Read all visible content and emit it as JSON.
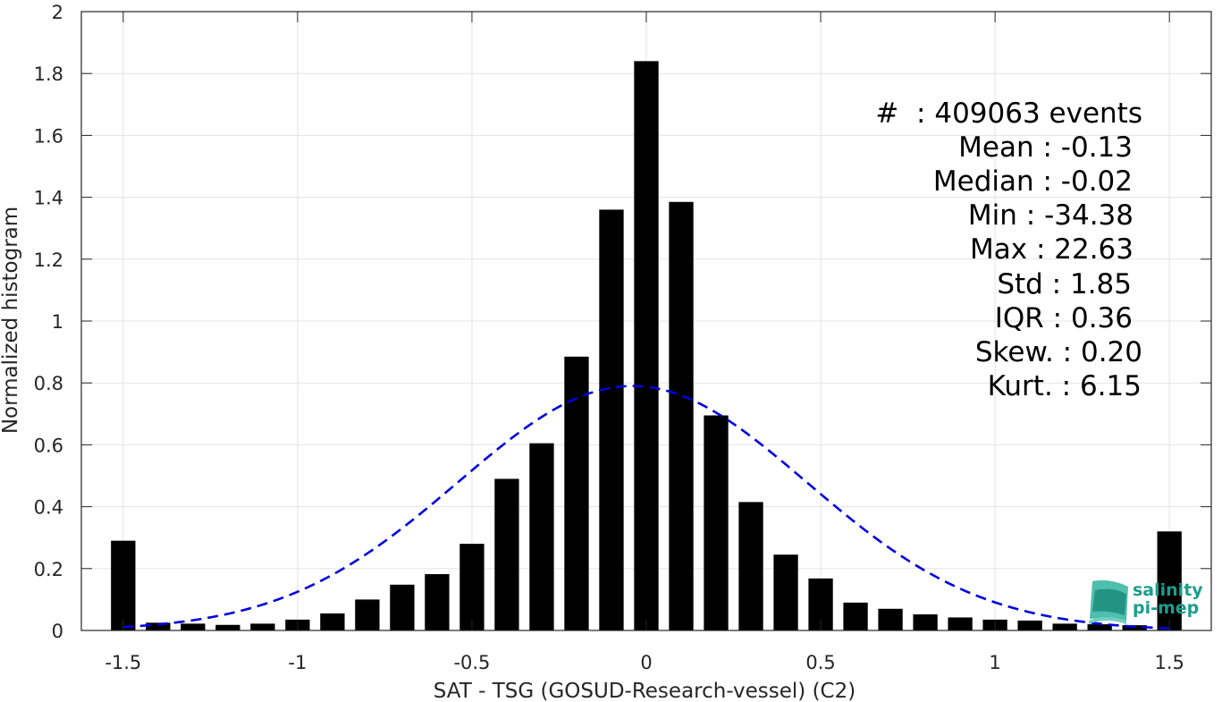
{
  "chart_data": {
    "type": "bar",
    "xlabel": "SAT - TSG (GOSUD-Research-vessel) (C2)",
    "ylabel": "Normalized histogram",
    "xlim": [
      -1.62,
      1.62
    ],
    "ylim": [
      0,
      2
    ],
    "xticks": [
      -1.5,
      -1,
      -0.5,
      0,
      0.5,
      1,
      1.5
    ],
    "xtick_labels": [
      "-1.5",
      "-1",
      "-0.5",
      "0",
      "0.5",
      "1",
      "1.5"
    ],
    "yticks": [
      0,
      0.2,
      0.4,
      0.6,
      0.8,
      1,
      1.2,
      1.4,
      1.6,
      1.8,
      2
    ],
    "ytick_labels": [
      "0",
      "0.2",
      "0.4",
      "0.6",
      "0.8",
      "1",
      "1.2",
      "1.4",
      "1.6",
      "1.8",
      "2"
    ],
    "grid": true,
    "bar_color": "#000000",
    "bar_width": 0.07,
    "bins": [
      {
        "x": -1.5,
        "y": 0.29
      },
      {
        "x": -1.4,
        "y": 0.025
      },
      {
        "x": -1.3,
        "y": 0.022
      },
      {
        "x": -1.2,
        "y": 0.018
      },
      {
        "x": -1.1,
        "y": 0.022
      },
      {
        "x": -1.0,
        "y": 0.035
      },
      {
        "x": -0.9,
        "y": 0.055
      },
      {
        "x": -0.8,
        "y": 0.1
      },
      {
        "x": -0.7,
        "y": 0.148
      },
      {
        "x": -0.6,
        "y": 0.182
      },
      {
        "x": -0.5,
        "y": 0.28
      },
      {
        "x": -0.4,
        "y": 0.49
      },
      {
        "x": -0.3,
        "y": 0.605
      },
      {
        "x": -0.2,
        "y": 0.885
      },
      {
        "x": -0.1,
        "y": 1.36
      },
      {
        "x": 0.0,
        "y": 1.84
      },
      {
        "x": 0.1,
        "y": 1.385
      },
      {
        "x": 0.2,
        "y": 0.695
      },
      {
        "x": 0.3,
        "y": 0.415
      },
      {
        "x": 0.4,
        "y": 0.245
      },
      {
        "x": 0.5,
        "y": 0.168
      },
      {
        "x": 0.6,
        "y": 0.09
      },
      {
        "x": 0.7,
        "y": 0.07
      },
      {
        "x": 0.8,
        "y": 0.052
      },
      {
        "x": 0.9,
        "y": 0.042
      },
      {
        "x": 1.0,
        "y": 0.035
      },
      {
        "x": 1.1,
        "y": 0.032
      },
      {
        "x": 1.2,
        "y": 0.022
      },
      {
        "x": 1.3,
        "y": 0.02
      },
      {
        "x": 1.4,
        "y": 0.017
      },
      {
        "x": 1.5,
        "y": 0.32
      }
    ],
    "gaussian": {
      "mean": -0.04,
      "peak": 0.79,
      "sigma": 0.5,
      "x_range": [
        -1.5,
        1.5
      ],
      "color": "#0000e0",
      "style": "dashed"
    },
    "stats": {
      "events": "#  : 409063 events",
      "mean": "Mean : -0.13",
      "median": "Median : -0.02",
      "min": "Min : -34.38",
      "max": "Max : 22.63",
      "std": "Std : 1.85",
      "iqr": "IQR : 0.36",
      "skew": "Skew. : 0.20",
      "kurt": "Kurt. : 6.15"
    }
  },
  "logo": {
    "line1": "salinity",
    "line2": "pi-mep",
    "color": "#1a9e8c"
  }
}
